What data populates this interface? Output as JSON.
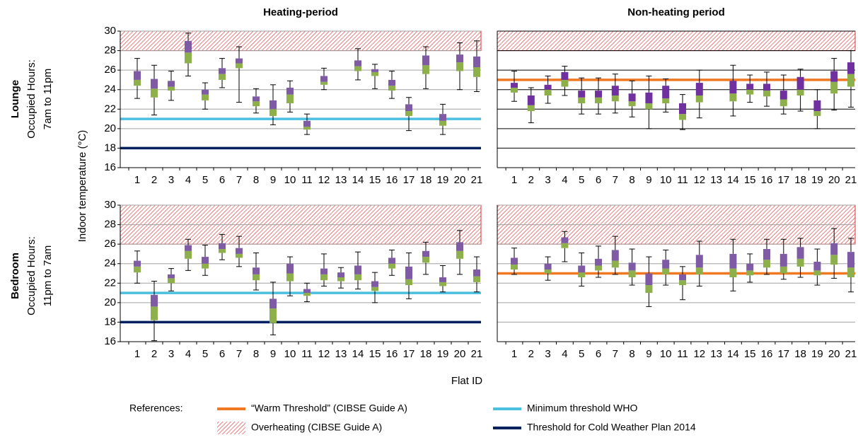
{
  "chart_data": [
    {
      "type": "box",
      "title": "Heating-period",
      "tick_labels": true,
      "grid_color": "#a0a0a0",
      "ylim": [
        16,
        30
      ],
      "yticks": [
        16,
        18,
        20,
        22,
        24,
        26,
        28,
        30
      ],
      "categories": [
        "1",
        "2",
        "3",
        "4",
        "5",
        "6",
        "7",
        "8",
        "9",
        "10",
        "11",
        "12",
        "13",
        "14",
        "15",
        "16",
        "17",
        "18",
        "19",
        "20",
        "21"
      ],
      "min": [
        23.1,
        21.4,
        22.9,
        25.4,
        22.0,
        24.2,
        22.7,
        21.6,
        20.4,
        21.7,
        19.4,
        24.0,
        null,
        25.0,
        24.1,
        23.1,
        19.8,
        24.1,
        19.4,
        24.0,
        23.8
      ],
      "q1": [
        24.4,
        23.2,
        23.9,
        26.7,
        22.9,
        25.0,
        26.2,
        22.3,
        21.3,
        22.6,
        19.9,
        24.5,
        null,
        25.9,
        25.4,
        23.9,
        21.3,
        25.6,
        20.3,
        25.9,
        25.3
      ],
      "median": [
        25.0,
        24.1,
        24.3,
        27.8,
        23.5,
        25.6,
        26.7,
        22.8,
        22.0,
        23.5,
        20.2,
        24.8,
        null,
        26.4,
        25.8,
        24.4,
        21.8,
        26.5,
        20.8,
        26.8,
        26.3
      ],
      "q3": [
        25.9,
        25.1,
        24.9,
        29.0,
        24.0,
        26.2,
        27.2,
        23.3,
        22.9,
        24.2,
        20.8,
        25.4,
        null,
        27.0,
        26.1,
        25.0,
        22.5,
        27.5,
        21.5,
        27.6,
        27.4
      ],
      "max": [
        27.2,
        26.5,
        25.9,
        29.8,
        24.7,
        27.2,
        28.4,
        24.1,
        24.5,
        24.9,
        21.5,
        26.2,
        null,
        28.2,
        26.6,
        25.9,
        23.2,
        28.4,
        22.5,
        28.8,
        29.0
      ],
      "box_colors": [
        "#8db04b",
        "#7f5ba6"
      ],
      "overheat_from": 28,
      "hlines": [
        {
          "value": 21,
          "color": "#4bbfe0"
        },
        {
          "value": 18,
          "color": "#002060"
        }
      ]
    },
    {
      "type": "box",
      "title": "Non-heating period",
      "tick_labels": false,
      "grid_color": "#000000",
      "ylim": [
        16,
        30
      ],
      "yticks": [
        16,
        18,
        20,
        22,
        24,
        26,
        28,
        30
      ],
      "categories": [
        "1",
        "2",
        "3",
        "4",
        "5",
        "6",
        "7",
        "8",
        "9",
        "10",
        "11",
        "12",
        "13",
        "14",
        "15",
        "16",
        "17",
        "18",
        "19",
        "20",
        "21"
      ],
      "min": [
        22.8,
        20.6,
        22.6,
        23.4,
        21.5,
        21.5,
        21.6,
        21.2,
        20.0,
        21.7,
        19.9,
        21.1,
        null,
        21.3,
        22.7,
        22.3,
        21.5,
        21.8,
        20.0,
        21.9,
        22.2
      ],
      "q1": [
        23.7,
        21.8,
        23.4,
        24.3,
        22.6,
        22.6,
        22.8,
        22.3,
        22.0,
        22.6,
        20.9,
        22.7,
        null,
        22.8,
        23.5,
        23.3,
        22.3,
        23.4,
        21.3,
        23.6,
        24.3
      ],
      "median": [
        24.2,
        22.4,
        24.0,
        25.0,
        23.2,
        23.2,
        23.4,
        22.8,
        22.6,
        23.1,
        21.5,
        23.4,
        null,
        23.6,
        24.0,
        23.9,
        23.0,
        24.0,
        21.8,
        24.8,
        25.6
      ],
      "q3": [
        24.7,
        23.4,
        24.5,
        25.8,
        23.9,
        23.9,
        24.4,
        23.6,
        23.7,
        24.4,
        22.6,
        24.7,
        null,
        24.9,
        24.6,
        24.6,
        23.9,
        25.3,
        22.9,
        25.9,
        26.8
      ],
      "max": [
        25.9,
        24.2,
        25.4,
        26.4,
        25.2,
        25.2,
        25.6,
        24.9,
        25.4,
        25.1,
        23.5,
        26.0,
        null,
        26.5,
        25.5,
        25.8,
        25.5,
        26.1,
        24.0,
        27.2,
        28.0
      ],
      "box_colors": [
        "#8db04b",
        "#7030a0"
      ],
      "overheat_from": 28,
      "hlines": [
        {
          "value": 25,
          "color": "#f07820"
        }
      ]
    },
    {
      "type": "box",
      "tick_labels": true,
      "grid_color": "#a0a0a0",
      "ylim": [
        16,
        30
      ],
      "yticks": [
        16,
        18,
        20,
        22,
        24,
        26,
        28,
        30
      ],
      "categories": [
        "1",
        "2",
        "3",
        "4",
        "5",
        "6",
        "7",
        "8",
        "9",
        "10",
        "11",
        "12",
        "13",
        "14",
        "15",
        "16",
        "17",
        "18",
        "19",
        "20",
        "21"
      ],
      "min": [
        22.0,
        16.1,
        21.2,
        23.3,
        22.8,
        24.4,
        23.7,
        21.3,
        16.7,
        20.7,
        20.1,
        21.7,
        21.5,
        21.4,
        20.0,
        22.8,
        20.4,
        22.9,
        21.1,
        22.9,
        21.1
      ],
      "q1": [
        23.1,
        18.2,
        22.0,
        24.5,
        23.5,
        25.1,
        24.6,
        22.3,
        17.9,
        22.2,
        20.7,
        22.3,
        22.2,
        22.3,
        21.2,
        23.5,
        21.8,
        24.1,
        21.7,
        24.5,
        22.1
      ],
      "median": [
        23.7,
        19.6,
        22.5,
        25.3,
        24.0,
        25.5,
        25.0,
        22.9,
        19.4,
        23.0,
        21.0,
        22.9,
        22.6,
        22.9,
        21.6,
        24.0,
        22.4,
        24.7,
        22.1,
        25.3,
        22.7
      ],
      "q3": [
        24.3,
        20.8,
        22.9,
        25.9,
        24.7,
        26.1,
        25.6,
        23.6,
        20.4,
        24.0,
        21.4,
        23.5,
        23.1,
        23.8,
        22.2,
        24.6,
        23.7,
        25.3,
        22.6,
        26.2,
        23.4
      ],
      "max": [
        25.3,
        22.2,
        23.5,
        26.5,
        25.9,
        27.0,
        26.8,
        25.1,
        22.1,
        24.7,
        22.0,
        25.0,
        23.6,
        25.2,
        23.1,
        25.4,
        25.1,
        26.2,
        23.8,
        27.4,
        24.7
      ],
      "box_colors": [
        "#8db04b",
        "#7f5ba6"
      ],
      "overheat_from": 26,
      "hlines": [
        {
          "value": 21,
          "color": "#4bbfe0"
        },
        {
          "value": 18,
          "color": "#002060"
        }
      ]
    },
    {
      "type": "box",
      "tick_labels": false,
      "grid_color": "#a0a0a0",
      "ylim": [
        16,
        30
      ],
      "yticks": [
        16,
        18,
        20,
        22,
        24,
        26,
        28,
        30
      ],
      "categories": [
        "1",
        "2",
        "3",
        "4",
        "5",
        "6",
        "7",
        "8",
        "9",
        "10",
        "11",
        "12",
        "13",
        "14",
        "15",
        "16",
        "17",
        "18",
        "19",
        "20",
        "21"
      ],
      "min": [
        22.9,
        null,
        22.3,
        24.2,
        21.7,
        22.6,
        22.9,
        21.8,
        19.6,
        21.8,
        20.3,
        21.7,
        null,
        21.2,
        22.1,
        22.9,
        22.4,
        22.6,
        21.8,
        22.5,
        21.1
      ],
      "q1": [
        23.4,
        null,
        23.0,
        25.6,
        22.6,
        23.3,
        23.6,
        22.6,
        21.0,
        22.9,
        21.8,
        22.9,
        null,
        22.6,
        22.8,
        23.6,
        23.0,
        23.7,
        22.8,
        23.9,
        22.6
      ],
      "median": [
        23.9,
        null,
        23.4,
        26.1,
        23.1,
        23.8,
        24.3,
        23.3,
        21.8,
        23.5,
        22.3,
        23.6,
        null,
        23.5,
        23.3,
        24.4,
        23.7,
        24.5,
        23.3,
        24.9,
        23.6
      ],
      "q3": [
        24.6,
        null,
        24.0,
        26.7,
        23.8,
        24.5,
        25.4,
        24.1,
        23.0,
        24.4,
        22.9,
        24.9,
        null,
        25.0,
        24.0,
        25.5,
        25.0,
        25.7,
        24.2,
        26.1,
        25.2
      ],
      "max": [
        25.6,
        null,
        24.7,
        27.3,
        25.1,
        25.8,
        26.8,
        25.5,
        24.7,
        25.4,
        23.7,
        26.3,
        null,
        26.5,
        25.0,
        26.5,
        26.5,
        26.6,
        25.5,
        27.6,
        26.6
      ],
      "box_colors": [
        "#8db04b",
        "#7f5ba6"
      ],
      "overheat_from": 26,
      "hlines": [
        {
          "value": 23,
          "color": "#f07820"
        }
      ]
    }
  ],
  "row_labels": [
    [
      "Lounge",
      "Occupied Hours:",
      "7am to 11pm"
    ],
    [
      "Bedroom",
      "Occupied Hours:",
      "11pm to 7am"
    ]
  ],
  "y_label": "Indoor temperature (°C)",
  "x_label": "Flat ID",
  "legend": {
    "title": "References:",
    "items": [
      {
        "label": "“Warm Threshold” (CIBSE Guide A)",
        "kind": "line",
        "color": "#f07820"
      },
      {
        "label": "Minimum threshold WHO",
        "kind": "line",
        "color": "#4bbfe0"
      },
      {
        "label": "Overheating (CIBSE Guide A)",
        "kind": "hatch",
        "color": "#e03030"
      },
      {
        "label": "Threshold for Cold Weather Plan 2014",
        "kind": "line",
        "color": "#002060"
      }
    ]
  }
}
